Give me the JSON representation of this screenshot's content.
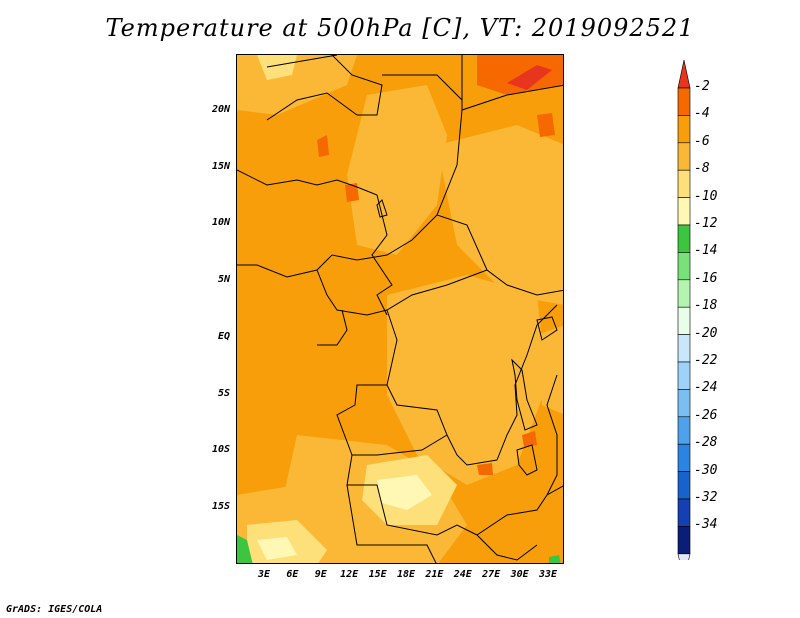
{
  "title": "Temperature at 500hPa [C], VT: 2019092521",
  "footer": "GrADS: IGES/COLA",
  "lat_labels": [
    "20N",
    "15N",
    "10N",
    "5N",
    "EQ",
    "5S",
    "10S",
    "15S"
  ],
  "lon_labels": [
    "3E",
    "6E",
    "9E",
    "12E",
    "15E",
    "18E",
    "21E",
    "24E",
    "27E",
    "30E",
    "33E"
  ],
  "colorbar": {
    "labels": [
      "-2",
      "-4",
      "-6",
      "-8",
      "-10",
      "-12",
      "-14",
      "-16",
      "-18",
      "-20",
      "-22",
      "-24",
      "-26",
      "-28",
      "-30",
      "-32",
      "-34"
    ],
    "colors": [
      "#e8361e",
      "#f66900",
      "#f79e0a",
      "#fbb836",
      "#fde07a",
      "#fef8b4",
      "#3cc640",
      "#78e278",
      "#b4f4b0",
      "#e8fee8",
      "#cae6fa",
      "#9ed2f6",
      "#7abef2",
      "#4ea2ec",
      "#2a84e4",
      "#1862cc",
      "#1440b4",
      "#0a1e78"
    ],
    "under_color": "#e6e6fa"
  }
}
